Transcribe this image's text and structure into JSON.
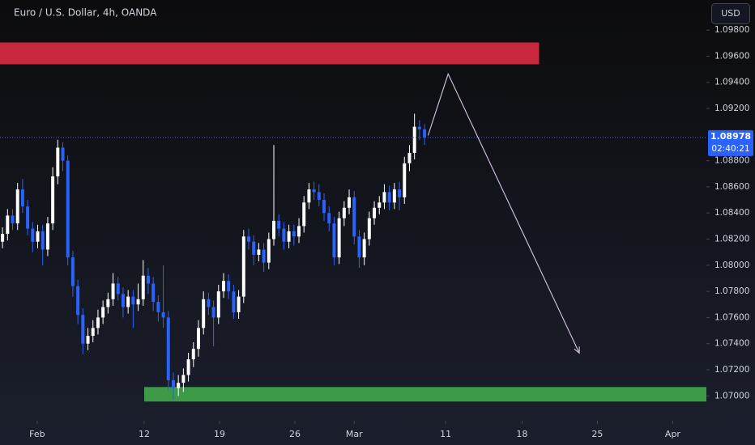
{
  "chart_data": {
    "type": "candlestick",
    "title": "Euro / U.S. Dollar, 4h, OANDA",
    "currency": "USD",
    "up_color": "#ffffff",
    "down_color": "#2962ff",
    "xlim": [
      0,
      140.6
    ],
    "ylim": [
      1.0681,
      1.1003
    ],
    "xticks": [
      {
        "value": 7.4,
        "label": "Feb"
      },
      {
        "value": 28.7,
        "label": "12"
      },
      {
        "value": 43.7,
        "label": "19"
      },
      {
        "value": 58.7,
        "label": "26"
      },
      {
        "value": 70.5,
        "label": "Mar"
      },
      {
        "value": 88.7,
        "label": "11"
      },
      {
        "value": 103.9,
        "label": "18"
      },
      {
        "value": 118.9,
        "label": "25"
      },
      {
        "value": 133.9,
        "label": "Apr"
      }
    ],
    "yticks": [
      {
        "value": 1.07,
        "label": "1.07000"
      },
      {
        "value": 1.072,
        "label": "1.07200"
      },
      {
        "value": 1.074,
        "label": "1.07400"
      },
      {
        "value": 1.076,
        "label": "1.07600"
      },
      {
        "value": 1.078,
        "label": "1.07800"
      },
      {
        "value": 1.08,
        "label": "1.08000"
      },
      {
        "value": 1.082,
        "label": "1.08200"
      },
      {
        "value": 1.084,
        "label": "1.08400"
      },
      {
        "value": 1.086,
        "label": "1.08600"
      },
      {
        "value": 1.088,
        "label": "1.08800"
      },
      {
        "value": 1.092,
        "label": "1.09200"
      },
      {
        "value": 1.094,
        "label": "1.09400"
      },
      {
        "value": 1.096,
        "label": "1.09600"
      },
      {
        "value": 1.098,
        "label": "1.09800"
      }
    ],
    "open": [
      1.0818,
      1.0824,
      1.0838,
      1.0832,
      1.0858,
      1.0845,
      1.0828,
      1.0818,
      1.0826,
      1.0812,
      1.0832,
      1.0868,
      1.089,
      1.088,
      1.0806,
      1.0784,
      1.0762,
      1.074,
      1.0746,
      1.0752,
      1.076,
      1.0768,
      1.0774,
      1.0786,
      1.0778,
      1.0768,
      1.0776,
      1.077,
      1.0774,
      1.0792,
      1.0786,
      1.0772,
      1.0764,
      1.076,
      1.0712,
      1.0706,
      1.071,
      1.0716,
      1.0728,
      1.0736,
      1.0752,
      1.0774,
      1.0768,
      1.076,
      1.078,
      1.0788,
      1.078,
      1.0764,
      1.0776,
      1.0822,
      1.0818,
      1.0808,
      1.0812,
      1.0802,
      1.082,
      1.0834,
      1.0828,
      1.0818,
      1.0826,
      1.0822,
      1.083,
      1.0848,
      1.0858,
      1.0856,
      1.085,
      1.084,
      1.0832,
      1.0806,
      1.0836,
      1.0844,
      1.0852,
      1.0822,
      1.0806,
      1.082,
      1.0836,
      1.0844,
      1.0848,
      1.0856,
      1.0848,
      1.0858,
      1.0852,
      1.0878,
      1.0886,
      1.0906,
      1.0904
    ],
    "high": [
      1.0829,
      1.0843,
      1.0843,
      1.0863,
      1.0866,
      1.085,
      1.0833,
      1.0831,
      1.0831,
      1.0837,
      1.0875,
      1.0896,
      1.0894,
      1.0884,
      1.0811,
      1.0789,
      1.0767,
      1.0752,
      1.0758,
      1.0766,
      1.0773,
      1.0779,
      1.0794,
      1.0791,
      1.0783,
      1.0781,
      1.0781,
      1.0786,
      1.0804,
      1.0798,
      1.0791,
      1.0777,
      1.08,
      1.0765,
      1.0718,
      1.0716,
      1.0721,
      1.0733,
      1.0741,
      1.0758,
      1.078,
      1.0779,
      1.0773,
      1.0785,
      1.0794,
      1.0793,
      1.0785,
      1.0781,
      1.0827,
      1.0828,
      1.0823,
      1.0817,
      1.0817,
      1.0825,
      1.0892,
      1.0839,
      1.0833,
      1.0831,
      1.0831,
      1.0836,
      1.0853,
      1.0863,
      1.0864,
      1.0862,
      1.0855,
      1.0845,
      1.0837,
      1.0841,
      1.0849,
      1.0858,
      1.0857,
      1.0827,
      1.0825,
      1.0841,
      1.0849,
      1.0853,
      1.0862,
      1.0861,
      1.0863,
      1.0864,
      1.0883,
      1.0892,
      1.0916,
      1.0911,
      1.0908
    ],
    "low": [
      1.0813,
      1.0819,
      1.0827,
      1.0827,
      1.084,
      1.0823,
      1.081,
      1.0813,
      1.08,
      1.0807,
      1.0827,
      1.0862,
      1.0872,
      1.08,
      1.0776,
      1.0755,
      1.0732,
      1.0735,
      1.0741,
      1.0747,
      1.0755,
      1.0763,
      1.0769,
      1.0773,
      1.076,
      1.0763,
      1.0752,
      1.0765,
      1.0769,
      1.0778,
      1.0765,
      1.0757,
      1.0752,
      1.0704,
      1.0697,
      1.07,
      1.0703,
      1.0711,
      1.0722,
      1.073,
      1.0747,
      1.0762,
      1.0738,
      1.0755,
      1.0775,
      1.0774,
      1.0759,
      1.0759,
      1.0771,
      1.0812,
      1.08,
      1.0803,
      1.0795,
      1.0797,
      1.0815,
      1.0822,
      1.0812,
      1.0813,
      1.0815,
      1.0817,
      1.0825,
      1.0843,
      1.085,
      1.0845,
      1.0834,
      1.0826,
      1.08,
      1.0801,
      1.083,
      1.0839,
      1.0816,
      1.0798,
      1.08,
      1.0815,
      1.0831,
      1.0839,
      1.0843,
      1.0842,
      1.0843,
      1.0842,
      1.0847,
      1.0872,
      1.0881,
      1.0896,
      1.0892
    ],
    "close": [
      1.0824,
      1.0838,
      1.0832,
      1.0858,
      1.0845,
      1.0828,
      1.0818,
      1.0826,
      1.0812,
      1.0832,
      1.0868,
      1.089,
      1.088,
      1.0806,
      1.0784,
      1.0762,
      1.074,
      1.0746,
      1.0752,
      1.076,
      1.0768,
      1.0774,
      1.0786,
      1.0778,
      1.0768,
      1.0776,
      1.077,
      1.0774,
      1.0792,
      1.0786,
      1.0772,
      1.0764,
      1.076,
      1.0712,
      1.0706,
      1.071,
      1.0716,
      1.0728,
      1.0736,
      1.0752,
      1.0774,
      1.0768,
      1.076,
      1.078,
      1.0788,
      1.078,
      1.0764,
      1.0776,
      1.0822,
      1.0818,
      1.0808,
      1.0812,
      1.0802,
      1.082,
      1.0834,
      1.0828,
      1.0818,
      1.0826,
      1.0822,
      1.083,
      1.0848,
      1.0858,
      1.0856,
      1.085,
      1.084,
      1.0832,
      1.0806,
      1.0836,
      1.0844,
      1.0852,
      1.0822,
      1.0806,
      1.082,
      1.0836,
      1.0844,
      1.0848,
      1.0856,
      1.0848,
      1.0858,
      1.0852,
      1.0878,
      1.0886,
      1.0906,
      1.0904,
      1.08978
    ],
    "last_price": {
      "value": 1.08978,
      "label": "1.08978"
    },
    "countdown": "02:40:21",
    "zones": [
      {
        "color": "#c8283c",
        "x": [
          0,
          107.3
        ],
        "y": [
          1.09538,
          1.09705
        ]
      },
      {
        "color": "#3d9a46",
        "x": [
          28.7,
          140.6
        ],
        "y": [
          1.06957,
          1.07068
        ]
      }
    ],
    "projection": {
      "color": "#c9b8d8",
      "x": [
        85.2,
        89.2,
        115.3
      ],
      "y": [
        1.08993,
        1.09464,
        1.07328
      ]
    }
  }
}
